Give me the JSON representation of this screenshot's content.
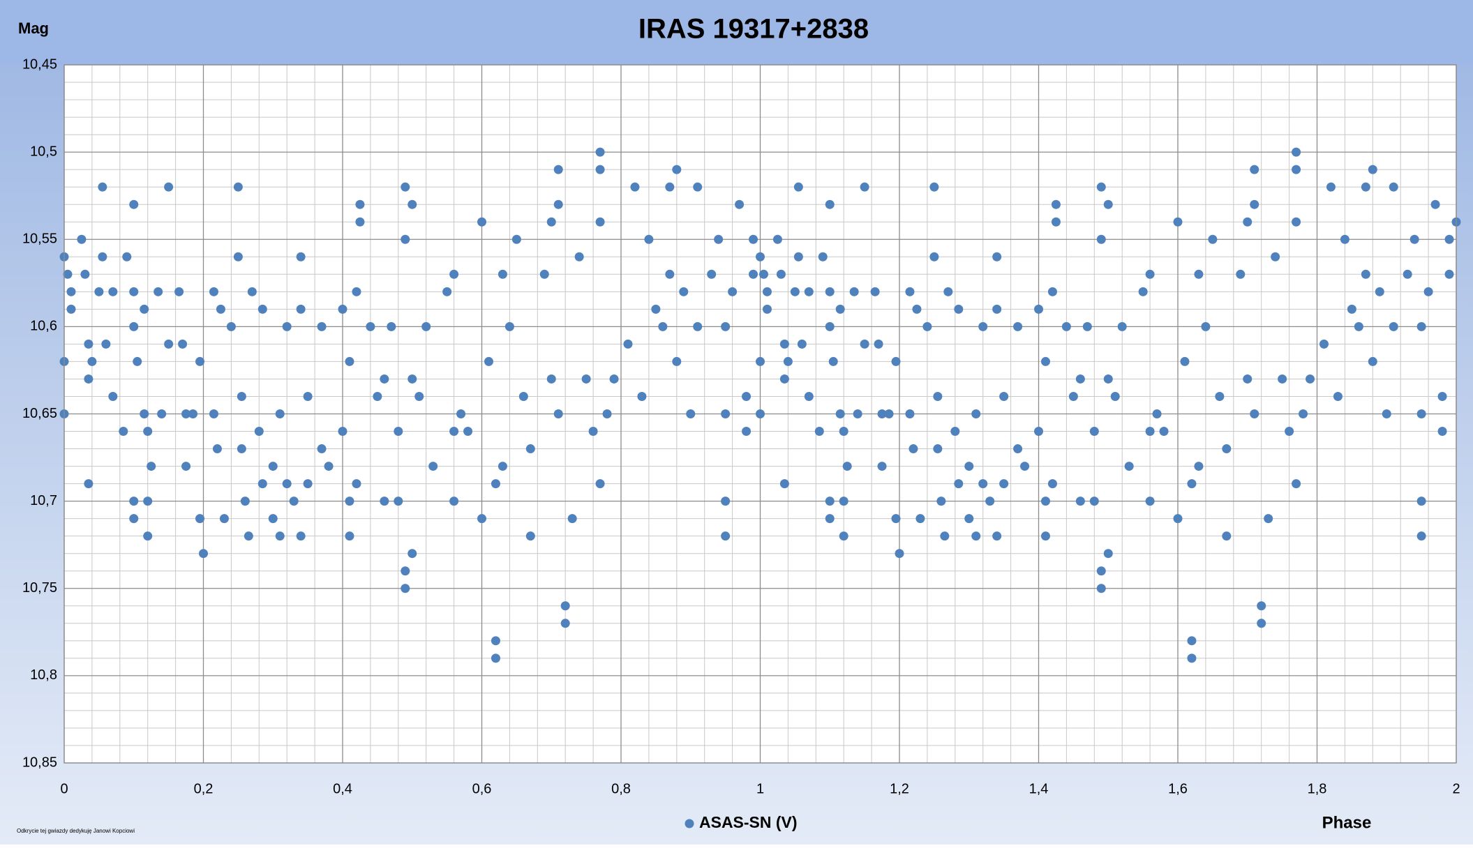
{
  "chart_data": {
    "type": "scatter",
    "title": "IRAS 19317+2838",
    "y_label": "Mag",
    "x_label": "Phase",
    "annotation": "Odkrycie tej gwiazdy dedykuję Janowi Kopciowi",
    "xlim": [
      0,
      2
    ],
    "ylim": [
      10.45,
      10.85
    ],
    "y_inverted": true,
    "grid": true,
    "minor_grid": true,
    "legend": "bottom",
    "xticks": [
      0,
      {
        "value": 0.2,
        "label": "0,2"
      },
      {
        "value": 0.4,
        "label": "0,4"
      },
      {
        "value": 0.6,
        "label": "0,6"
      },
      {
        "value": 0.8,
        "label": "0,8"
      },
      1,
      {
        "value": 1.2,
        "label": "1,2"
      },
      {
        "value": 1.4,
        "label": "1,4"
      },
      {
        "value": 1.6,
        "label": "1,6"
      },
      {
        "value": 1.8,
        "label": "1,8"
      },
      2
    ],
    "yticks": [
      {
        "value": 10.45,
        "label": "10,45"
      },
      {
        "value": 10.5,
        "label": "10,5"
      },
      {
        "value": 10.55,
        "label": "10,55"
      },
      {
        "value": 10.6,
        "label": "10,6"
      },
      {
        "value": 10.65,
        "label": "10,65"
      },
      {
        "value": 10.7,
        "label": "10,7"
      },
      {
        "value": 10.75,
        "label": "10,75"
      },
      {
        "value": 10.8,
        "label": "10,8"
      },
      {
        "value": 10.85,
        "label": "10,85"
      }
    ],
    "series": [
      {
        "name": "ASAS-SN (V)",
        "color": "#4f81bd",
        "x": [
          0,
          0,
          0,
          0.005,
          0.01,
          0.01,
          0.025,
          0.03,
          0.035,
          0.035,
          0.035,
          0.04,
          0.05,
          0.055,
          0.055,
          0.06,
          0.07,
          0.07,
          0.085,
          0.09,
          0.1,
          0.1,
          0.1,
          0.1,
          0.1,
          0.105,
          0.115,
          0.115,
          0.12,
          0.12,
          0.12,
          0.125,
          0.135,
          0.14,
          0.15,
          0.15,
          0.165,
          0.17,
          0.175,
          0.175,
          0.185,
          0.195,
          0.195,
          0.2,
          0.215,
          0.215,
          0.22,
          0.225,
          0.23,
          0.24,
          0.25,
          0.25,
          0.255,
          0.255,
          0.26,
          0.265,
          0.27,
          0.28,
          0.285,
          0.285,
          0.3,
          0.3,
          0.31,
          0.31,
          0.32,
          0.32,
          0.33,
          0.34,
          0.34,
          0.34,
          0.35,
          0.35,
          0.37,
          0.37,
          0.38,
          0.4,
          0.4,
          0.41,
          0.41,
          0.41,
          0.42,
          0.42,
          0.425,
          0.425,
          0.44,
          0.45,
          0.46,
          0.46,
          0.47,
          0.48,
          0.48,
          0.49,
          0.49,
          0.49,
          0.49,
          0.5,
          0.5,
          0.5,
          0.51,
          0.52,
          0.53,
          0.55,
          0.56,
          0.56,
          0.56,
          0.57,
          0.58,
          0.6,
          0.6,
          0.61,
          0.62,
          0.62,
          0.62,
          0.63,
          0.63,
          0.64,
          0.65,
          0.66,
          0.67,
          0.67,
          0.69,
          0.7,
          0.7,
          0.71,
          0.71,
          0.71,
          0.72,
          0.72,
          0.73,
          0.74,
          0.75,
          0.76,
          0.77,
          0.77,
          0.77,
          0.77,
          0.78,
          0.79,
          0.81,
          0.82,
          0.83,
          0.84,
          0.85,
          0.86,
          0.87,
          0.87,
          0.88,
          0.88,
          0.89,
          0.9,
          0.91,
          0.91,
          0.93,
          0.94,
          0.95,
          0.95,
          0.95,
          0.95,
          0.96,
          0.97,
          0.98,
          0.98,
          0.99,
          0.99,
          1,
          1,
          1,
          1.005,
          1.01,
          1.01,
          1.025,
          1.03,
          1.035,
          1.035,
          1.035,
          1.04,
          1.05,
          1.055,
          1.055,
          1.06,
          1.07,
          1.07,
          1.085,
          1.09,
          1.1,
          1.1,
          1.1,
          1.1,
          1.1,
          1.105,
          1.115,
          1.115,
          1.12,
          1.12,
          1.12,
          1.125,
          1.135,
          1.14,
          1.15,
          1.15,
          1.165,
          1.17,
          1.175,
          1.175,
          1.185,
          1.195,
          1.195,
          1.2,
          1.215,
          1.215,
          1.22,
          1.225,
          1.23,
          1.24,
          1.25,
          1.25,
          1.255,
          1.255,
          1.26,
          1.265,
          1.27,
          1.28,
          1.285,
          1.285,
          1.3,
          1.3,
          1.31,
          1.31,
          1.32,
          1.32,
          1.33,
          1.34,
          1.34,
          1.34,
          1.35,
          1.35,
          1.37,
          1.37,
          1.38,
          1.4,
          1.4,
          1.41,
          1.41,
          1.41,
          1.42,
          1.42,
          1.425,
          1.425,
          1.44,
          1.45,
          1.46,
          1.46,
          1.47,
          1.48,
          1.48,
          1.49,
          1.49,
          1.49,
          1.49,
          1.5,
          1.5,
          1.5,
          1.51,
          1.52,
          1.53,
          1.55,
          1.56,
          1.56,
          1.56,
          1.57,
          1.58,
          1.6,
          1.6,
          1.61,
          1.62,
          1.62,
          1.62,
          1.63,
          1.63,
          1.64,
          1.65,
          1.66,
          1.67,
          1.67,
          1.69,
          1.7,
          1.7,
          1.71,
          1.71,
          1.71,
          1.72,
          1.72,
          1.73,
          1.74,
          1.75,
          1.76,
          1.77,
          1.77,
          1.77,
          1.77,
          1.78,
          1.79,
          1.81,
          1.82,
          1.83,
          1.84,
          1.85,
          1.86,
          1.87,
          1.87,
          1.88,
          1.88,
          1.89,
          1.9,
          1.91,
          1.91,
          1.93,
          1.94,
          1.95,
          1.95,
          1.95,
          1.95,
          1.96,
          1.97,
          1.98,
          1.98,
          1.99,
          1.99,
          2
        ],
        "values": [
          10.56,
          10.62,
          10.65,
          10.57,
          10.58,
          10.59,
          10.55,
          10.57,
          10.61,
          10.63,
          10.69,
          10.62,
          10.58,
          10.52,
          10.56,
          10.61,
          10.58,
          10.64,
          10.66,
          10.56,
          10.53,
          10.58,
          10.6,
          10.7,
          10.71,
          10.62,
          10.59,
          10.65,
          10.66,
          10.7,
          10.72,
          10.68,
          10.58,
          10.65,
          10.52,
          10.61,
          10.58,
          10.61,
          10.65,
          10.68,
          10.65,
          10.62,
          10.71,
          10.73,
          10.58,
          10.65,
          10.67,
          10.59,
          10.71,
          10.6,
          10.52,
          10.56,
          10.64,
          10.67,
          10.7,
          10.72,
          10.58,
          10.66,
          10.59,
          10.69,
          10.68,
          10.71,
          10.65,
          10.72,
          10.6,
          10.69,
          10.7,
          10.56,
          10.59,
          10.72,
          10.64,
          10.69,
          10.6,
          10.67,
          10.68,
          10.59,
          10.66,
          10.62,
          10.7,
          10.72,
          10.58,
          10.69,
          10.53,
          10.54,
          10.6,
          10.64,
          10.63,
          10.7,
          10.6,
          10.66,
          10.7,
          10.52,
          10.55,
          10.74,
          10.75,
          10.53,
          10.63,
          10.73,
          10.64,
          10.6,
          10.68,
          10.58,
          10.57,
          10.66,
          10.7,
          10.65,
          10.66,
          10.54,
          10.71,
          10.62,
          10.78,
          10.79,
          10.69,
          10.57,
          10.68,
          10.6,
          10.55,
          10.64,
          10.67,
          10.72,
          10.57,
          10.54,
          10.63,
          10.51,
          10.53,
          10.65,
          10.76,
          10.77,
          10.71,
          10.56,
          10.63,
          10.66,
          10.5,
          10.51,
          10.54,
          10.69,
          10.65,
          10.63,
          10.61,
          10.52,
          10.64,
          10.55,
          10.59,
          10.6,
          10.52,
          10.57,
          10.51,
          10.62,
          10.58,
          10.65,
          10.52,
          10.6,
          10.57,
          10.55,
          10.6,
          10.65,
          10.7,
          10.72,
          10.58,
          10.53,
          10.64,
          10.66,
          10.55,
          10.57,
          10.56,
          10.62,
          10.65,
          10.57,
          10.58,
          10.59,
          10.55,
          10.57,
          10.61,
          10.63,
          10.69,
          10.62,
          10.58,
          10.52,
          10.56,
          10.61,
          10.58,
          10.64,
          10.66,
          10.56,
          10.53,
          10.58,
          10.6,
          10.7,
          10.71,
          10.62,
          10.59,
          10.65,
          10.66,
          10.7,
          10.72,
          10.68,
          10.58,
          10.65,
          10.52,
          10.61,
          10.58,
          10.61,
          10.65,
          10.68,
          10.65,
          10.62,
          10.71,
          10.73,
          10.58,
          10.65,
          10.67,
          10.59,
          10.71,
          10.6,
          10.52,
          10.56,
          10.64,
          10.67,
          10.7,
          10.72,
          10.58,
          10.66,
          10.59,
          10.69,
          10.68,
          10.71,
          10.65,
          10.72,
          10.6,
          10.69,
          10.7,
          10.56,
          10.59,
          10.72,
          10.64,
          10.69,
          10.6,
          10.67,
          10.68,
          10.59,
          10.66,
          10.62,
          10.7,
          10.72,
          10.58,
          10.69,
          10.53,
          10.54,
          10.6,
          10.64,
          10.63,
          10.7,
          10.6,
          10.66,
          10.7,
          10.52,
          10.55,
          10.74,
          10.75,
          10.53,
          10.63,
          10.73,
          10.64,
          10.6,
          10.68,
          10.58,
          10.57,
          10.66,
          10.7,
          10.65,
          10.66,
          10.54,
          10.71,
          10.62,
          10.78,
          10.79,
          10.69,
          10.57,
          10.68,
          10.6,
          10.55,
          10.64,
          10.67,
          10.72,
          10.57,
          10.54,
          10.63,
          10.51,
          10.53,
          10.65,
          10.76,
          10.77,
          10.71,
          10.56,
          10.63,
          10.66,
          10.5,
          10.51,
          10.54,
          10.69,
          10.65,
          10.63,
          10.61,
          10.52,
          10.64,
          10.55,
          10.59,
          10.6,
          10.52,
          10.57,
          10.51,
          10.62,
          10.58,
          10.65,
          10.52,
          10.6,
          10.57,
          10.55,
          10.6,
          10.65,
          10.7,
          10.72,
          10.58,
          10.53,
          10.64,
          10.66,
          10.55,
          10.57,
          10.54
        ]
      }
    ]
  }
}
